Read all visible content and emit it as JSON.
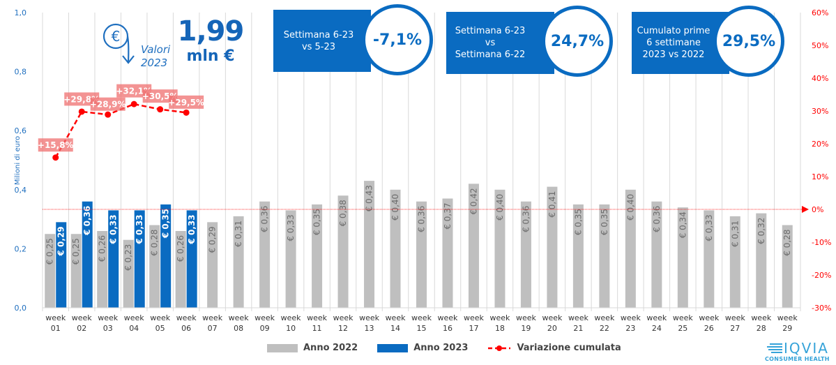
{
  "chart_data": {
    "type": "bar",
    "title": "",
    "ylabel": "Milioni di euro",
    "ylabel_right": "Variazione cumulata",
    "ylim": [
      0,
      1.0
    ],
    "ylim_right": [
      -0.3,
      0.6
    ],
    "yticks_left": [
      "0,0",
      "0,2",
      "0,4",
      "0,6",
      "0,8",
      "1,0"
    ],
    "yticks_left_values": [
      0,
      0.2,
      0.4,
      0.6,
      0.8,
      1.0
    ],
    "yticks_right": [
      "-30%",
      "-20%",
      "-10%",
      "0%",
      "10%",
      "20%",
      "30%",
      "40%",
      "50%",
      "60%"
    ],
    "yticks_right_values": [
      -0.3,
      -0.2,
      -0.1,
      0,
      0.1,
      0.2,
      0.3,
      0.4,
      0.5,
      0.6
    ],
    "categories": [
      "week 01",
      "week 02",
      "week 03",
      "week 04",
      "week 05",
      "week 06",
      "week 07",
      "week 08",
      "week 09",
      "week 10",
      "week 11",
      "week 12",
      "week 13",
      "week 14",
      "week 15",
      "week 16",
      "week 17",
      "week 18",
      "week 19",
      "week 20",
      "week 21",
      "week 22",
      "week 23",
      "week 24",
      "week 25",
      "week 26",
      "week 27",
      "week 28",
      "week 29"
    ],
    "series": [
      {
        "name": "Anno 2022",
        "type": "bar",
        "axis": "left",
        "color": "#bfbfbf",
        "values": [
          0.25,
          0.25,
          0.26,
          0.23,
          0.28,
          0.26,
          0.29,
          0.31,
          0.36,
          0.33,
          0.35,
          0.38,
          0.43,
          0.4,
          0.36,
          0.37,
          0.42,
          0.4,
          0.36,
          0.41,
          0.35,
          0.35,
          0.4,
          0.36,
          0.34,
          0.33,
          0.31,
          0.32,
          0.28
        ],
        "labels": [
          "€ 0,25",
          "€ 0,25",
          "€ 0,26",
          "€ 0,23",
          "€ 0,28",
          "€ 0,26",
          "€ 0,29",
          "€ 0,31",
          "€ 0,36",
          "€ 0,33",
          "€ 0,35",
          "€ 0,38",
          "€ 0,43",
          "€ 0,40",
          "€ 0,36",
          "€ 0,37",
          "€ 0,42",
          "€ 0,40",
          "€ 0,36",
          "€ 0,41",
          "€ 0,35",
          "€ 0,35",
          "€ 0,40",
          "€ 0,36",
          "€ 0,34",
          "€ 0,33",
          "€ 0,31",
          "€ 0,32",
          "€ 0,28"
        ]
      },
      {
        "name": "Anno 2023",
        "type": "bar",
        "axis": "left",
        "color": "#0a6bc1",
        "values": [
          0.29,
          0.36,
          0.33,
          0.33,
          0.35,
          0.33
        ],
        "labels": [
          "€ 0,29",
          "€ 0,36",
          "€ 0,33",
          "€ 0,33",
          "€ 0,35",
          "€ 0,33"
        ]
      },
      {
        "name": "Variazione cumulata",
        "type": "line",
        "axis": "right",
        "color": "#ff0000",
        "values": [
          0.158,
          0.298,
          0.289,
          0.321,
          0.305,
          0.295
        ],
        "labels": [
          "+15,8%",
          "+29,8%",
          "+28,9%",
          "+32,1%",
          "+30,5%",
          "+29,5%"
        ]
      }
    ],
    "reference_line": {
      "axis": "right",
      "value": 0,
      "color": "#ff0000",
      "style": "dotted"
    },
    "legend": {
      "position": "bottom",
      "entries": [
        "Anno 2022",
        "Anno 2023",
        "Variazione cumulata"
      ]
    },
    "grid": {
      "vertical": true,
      "horizontal": false
    }
  },
  "headline": {
    "total_value": "1,99",
    "total_unit": "mln €",
    "icon": "euro-down-arrow-icon",
    "caption_line1": "Valori",
    "caption_line2": "2023"
  },
  "kpis": [
    {
      "label_lines": [
        "Settimana 6-23",
        "vs 5-23"
      ],
      "value": "-7,1%"
    },
    {
      "label_lines": [
        "Settimana 6-23",
        "vs",
        "Settimana 6-22"
      ],
      "value": "24,7%"
    },
    {
      "label_lines": [
        "Cumulato prime",
        "6 settimane",
        "2023 vs 2022"
      ],
      "value": "29,5%"
    }
  ],
  "legend": {
    "items": [
      {
        "label": "Anno 2022",
        "color": "#bfbfbf"
      },
      {
        "label": "Anno 2023",
        "color": "#0a6bc1"
      },
      {
        "label": "Variazione cumulata",
        "color": "#ff0000"
      }
    ]
  },
  "logo": {
    "name": "IQVIA",
    "subtitle": "CONSUMER HEALTH"
  },
  "colors": {
    "brand_blue": "#0a6bc1",
    "axis_blue": "#1f6fbf",
    "red": "#ff0000",
    "gray_bar": "#bfbfbf",
    "label_bg": "#f08080"
  }
}
